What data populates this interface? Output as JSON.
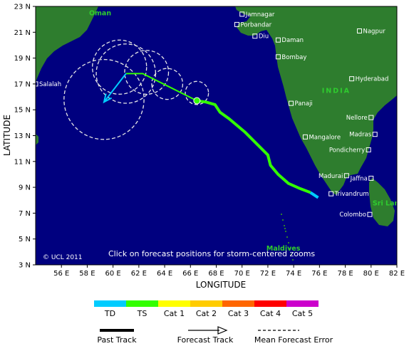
{
  "map": {
    "lon_range": [
      54,
      82
    ],
    "lat_range": [
      3,
      23
    ],
    "lon_ticks": [
      "56 E",
      "58 E",
      "60 E",
      "62 E",
      "64 E",
      "66 E",
      "68 E",
      "70 E",
      "72 E",
      "74 E",
      "76 E",
      "78 E",
      "80 E",
      "82 E"
    ],
    "lat_ticks": [
      "3 N",
      "5 N",
      "7 N",
      "9 N",
      "11 N",
      "13 N",
      "15 N",
      "17 N",
      "19 N",
      "21 N",
      "23 N"
    ],
    "xlabel": "LONGITUDE",
    "ylabel": "LATITUDE",
    "ocean_color": "#00007f",
    "land_color": "#2e7d2e",
    "regions": [
      {
        "label": "Oman",
        "lon": 59.0,
        "lat": 22.3
      },
      {
        "label": "INDIA",
        "lon": 77.3,
        "lat": 16.3
      },
      {
        "label": "Sri Lanka",
        "lon": 81.5,
        "lat": 7.6
      },
      {
        "label": "Maldives",
        "lon": 73.2,
        "lat": 4.1
      }
    ],
    "cities": [
      {
        "name": "Jamnagar",
        "lon": 70.0,
        "lat": 22.4,
        "side": "right"
      },
      {
        "name": "Porbandar",
        "lon": 69.6,
        "lat": 21.6,
        "side": "right"
      },
      {
        "name": "Diu",
        "lon": 71.0,
        "lat": 20.7,
        "side": "right"
      },
      {
        "name": "Daman",
        "lon": 72.8,
        "lat": 20.4,
        "side": "right"
      },
      {
        "name": "Bombay",
        "lon": 72.8,
        "lat": 19.1,
        "side": "right"
      },
      {
        "name": "Nagpur",
        "lon": 79.1,
        "lat": 21.1,
        "side": "right"
      },
      {
        "name": "Hyderabad",
        "lon": 78.5,
        "lat": 17.4,
        "side": "right"
      },
      {
        "name": "Panaji",
        "lon": 73.8,
        "lat": 15.5,
        "side": "right"
      },
      {
        "name": "Nellore",
        "lon": 80.0,
        "lat": 14.4,
        "side": "left"
      },
      {
        "name": "Madras",
        "lon": 80.3,
        "lat": 13.1,
        "side": "left"
      },
      {
        "name": "Mangalore",
        "lon": 74.9,
        "lat": 12.9,
        "side": "right"
      },
      {
        "name": "Pondicherry",
        "lon": 79.8,
        "lat": 11.9,
        "side": "left"
      },
      {
        "name": "Madurai",
        "lon": 78.1,
        "lat": 9.9,
        "side": "left"
      },
      {
        "name": "Jaffna",
        "lon": 80.0,
        "lat": 9.7,
        "side": "left"
      },
      {
        "name": "Trivandrum",
        "lon": 76.9,
        "lat": 8.5,
        "side": "right"
      },
      {
        "name": "Colombo",
        "lon": 79.9,
        "lat": 6.9,
        "side": "left"
      },
      {
        "name": "Salalah",
        "lon": 54.0,
        "lat": 17.0,
        "side": "right"
      }
    ],
    "copyright": "© UCL 2011",
    "instruction": "Click on forecast positions for storm-centered zooms"
  },
  "storm": {
    "past_track_ts": [
      [
        75.3,
        8.6
      ],
      [
        74.5,
        8.9
      ],
      [
        73.6,
        9.3
      ],
      [
        72.8,
        10.0
      ],
      [
        72.2,
        10.7
      ],
      [
        72.0,
        11.5
      ],
      [
        71.2,
        12.3
      ],
      [
        70.2,
        13.3
      ],
      [
        69.0,
        14.3
      ],
      [
        68.3,
        14.8
      ],
      [
        67.9,
        15.4
      ],
      [
        67.2,
        15.6
      ],
      [
        66.5,
        15.7
      ]
    ],
    "past_track_td": [
      [
        75.9,
        8.2
      ],
      [
        75.3,
        8.6
      ]
    ],
    "current_position": [
      66.5,
      15.7
    ],
    "forecast_track_ts": [
      [
        66.5,
        15.7
      ],
      [
        64.5,
        16.7
      ],
      [
        62.3,
        17.8
      ],
      [
        61.0,
        17.8
      ]
    ],
    "forecast_track_td": [
      [
        61.0,
        17.8
      ],
      [
        59.3,
        15.6
      ]
    ],
    "error_circles": [
      {
        "lon": 66.5,
        "lat": 16.3,
        "r": 0.9
      },
      {
        "lon": 64.2,
        "lat": 17.0,
        "r": 1.2
      },
      {
        "lon": 62.6,
        "lat": 17.9,
        "r": 1.7
      },
      {
        "lon": 61.0,
        "lat": 17.8,
        "r": 2.3
      },
      {
        "lon": 60.5,
        "lat": 18.3,
        "r": 2.1
      },
      {
        "lon": 59.3,
        "lat": 15.8,
        "r": 3.1
      }
    ]
  },
  "legend": {
    "categories": [
      {
        "label": "TD",
        "color": "#00ccff"
      },
      {
        "label": "TS",
        "color": "#33ff00"
      },
      {
        "label": "Cat 1",
        "color": "#ffff00"
      },
      {
        "label": "Cat 2",
        "color": "#ffcc00"
      },
      {
        "label": "Cat 3",
        "color": "#ff6600"
      },
      {
        "label": "Cat 4",
        "color": "#ff0000"
      },
      {
        "label": "Cat 5",
        "color": "#cc00cc"
      }
    ],
    "past_track_label": "Past Track",
    "forecast_track_label": "Forecast Track",
    "error_label": "Mean Forecast Error"
  }
}
